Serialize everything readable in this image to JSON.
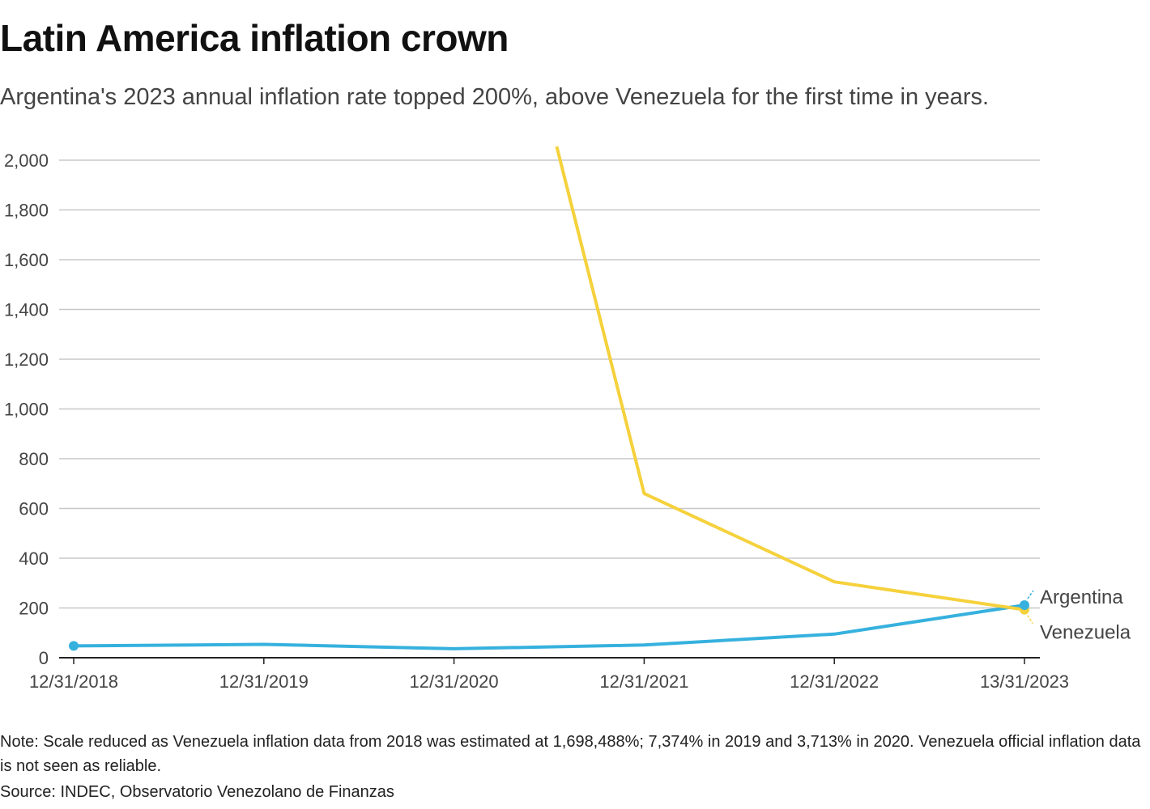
{
  "title": "Latin America inflation crown",
  "subtitle": "Argentina's 2023 annual inflation rate topped 200%, above Venezuela for the first time in years.",
  "note": "Note: Scale reduced as Venezuela inflation data from 2018 was estimated at 1,698,488%; 7,374% in 2019 and 3,713% in 2020. Venezuela official inflation data is not seen as reliable.",
  "source": "Source: INDEC, Observatorio Venezolano de Finanzas",
  "colors": {
    "argentina": "#36B1DE",
    "venezuela": "#F5D13C",
    "grid": "#C8C8C8",
    "axis": "#222222"
  },
  "chart_data": {
    "type": "line",
    "title": "Latin America inflation crown",
    "xlabel": "",
    "ylabel": "",
    "ylim": [
      0,
      2000
    ],
    "yticks": [
      0,
      200,
      400,
      600,
      800,
      1000,
      1200,
      1400,
      1600,
      1800,
      2000
    ],
    "ytick_labels": [
      "0",
      "200",
      "400",
      "600",
      "800",
      "1,000",
      "1,200",
      "1,400",
      "1,600",
      "1,800",
      "2,000"
    ],
    "x": [
      0,
      1,
      2,
      3,
      4,
      5
    ],
    "xtick_labels": [
      "12/31/2018",
      "12/31/2019",
      "12/31/2020",
      "12/31/2021",
      "12/31/2022",
      "13/31/2023"
    ],
    "grid": true,
    "series": [
      {
        "name": "Argentina",
        "color": "#36B1DE",
        "x": [
          0,
          1,
          2,
          3,
          4,
          5
        ],
        "values": [
          47.6,
          53.8,
          36.1,
          50.9,
          94.8,
          211.4
        ],
        "start_marker": true,
        "end_marker": true
      },
      {
        "name": "Venezuela",
        "color": "#F5D13C",
        "x": [
          2.54,
          3,
          4,
          5
        ],
        "values": [
          2055,
          660,
          305,
          193
        ],
        "clipped_at_top": true,
        "start_marker": false,
        "end_marker": true
      }
    ]
  }
}
